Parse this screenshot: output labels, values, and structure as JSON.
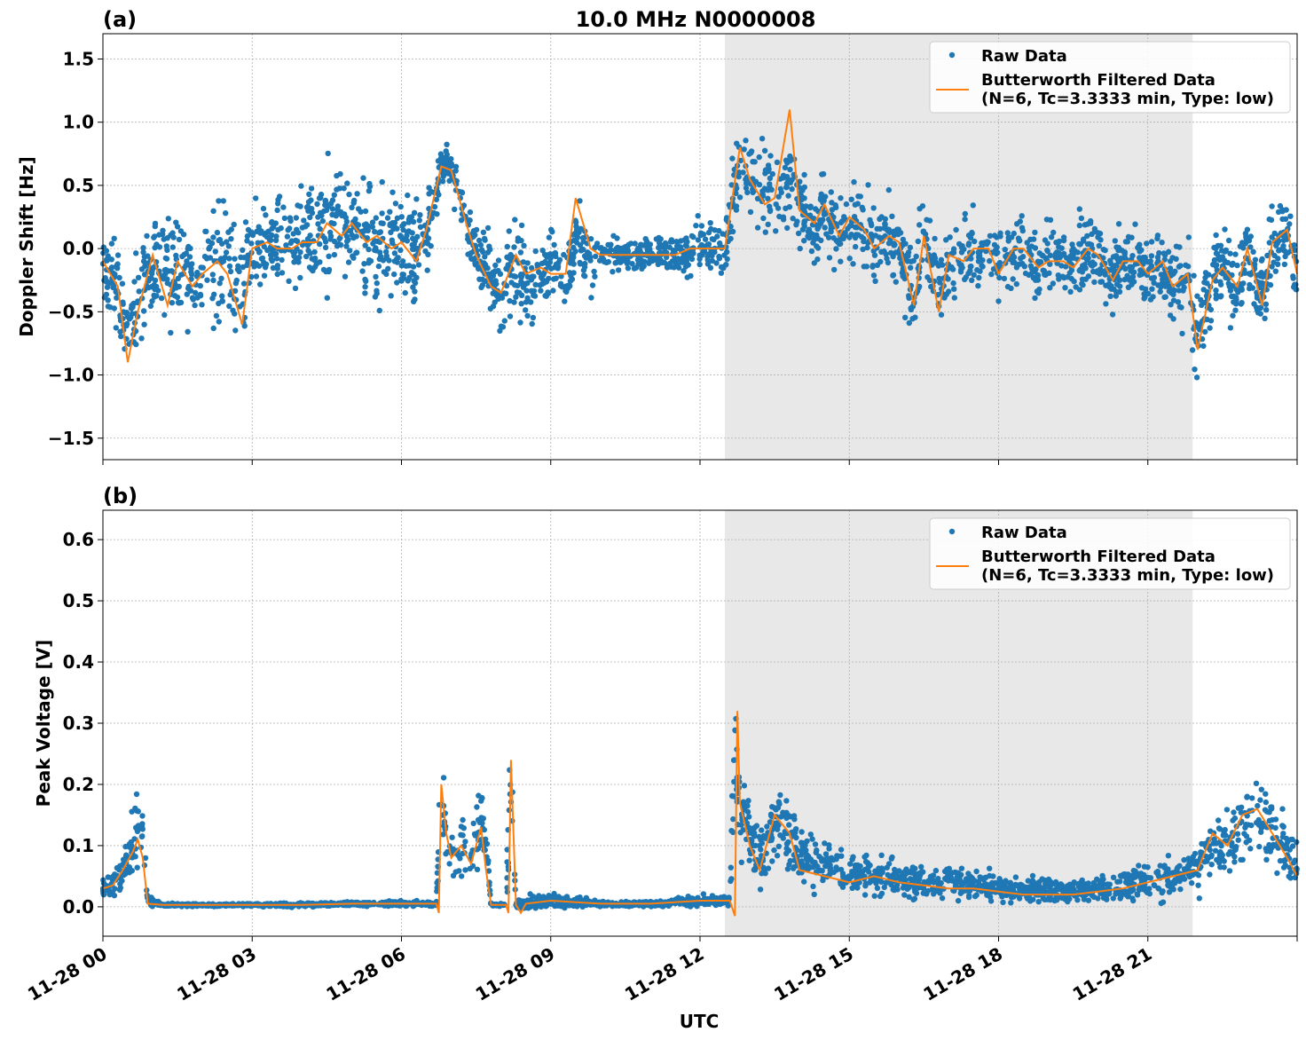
{
  "title": "10.0 MHz N0000008",
  "xlabel": "UTC",
  "x_tick_labels": [
    "11-28 00",
    "11-28 03",
    "11-28 06",
    "11-28 09",
    "11-28 12",
    "11-28 15",
    "11-28 18",
    "11-28 21"
  ],
  "colors": {
    "raw": "#1f77b4",
    "filtered": "#ff7f0e",
    "shade": "#e8e8e8",
    "grid": "#b0b0b0"
  },
  "legend": {
    "raw_label": "Raw Data",
    "filtered_label_line1": "Butterworth Filtered Data",
    "filtered_label_line2": "(N=6, Tc=3.3333 min, Type: low)"
  },
  "chart_data": [
    {
      "type": "scatter",
      "panel_label": "(a)",
      "ylabel": "Doppler Shift [Hz]",
      "xlim_hours": [
        0,
        24
      ],
      "ylim": [
        -1.67,
        1.7
      ],
      "yticks": [
        -1.5,
        -1.0,
        -0.5,
        0.0,
        0.5,
        1.0,
        1.5
      ],
      "ytick_labels": [
        "−1.5",
        "−1.0",
        "−0.5",
        "0.0",
        "0.5",
        "1.0",
        "1.5"
      ],
      "shaded_span_hours": [
        12.5,
        21.9
      ],
      "grid": true,
      "legend_position": "upper right",
      "series": [
        {
          "name": "Raw Data",
          "style": "points",
          "x_hours": [
            0.0,
            0.3,
            0.5,
            0.7,
            1.0,
            1.3,
            1.5,
            1.8,
            2.0,
            2.3,
            2.5,
            2.8,
            3.0,
            3.3,
            3.5,
            3.8,
            4.0,
            4.3,
            4.5,
            4.8,
            5.0,
            5.3,
            5.5,
            5.8,
            6.0,
            6.3,
            6.5,
            6.8,
            7.0,
            7.3,
            7.5,
            7.8,
            8.0,
            8.3,
            8.5,
            8.8,
            9.0,
            9.3,
            9.5,
            9.8,
            10.0,
            10.3,
            10.5,
            10.8,
            11.0,
            11.3,
            11.5,
            11.8,
            12.0,
            12.3,
            12.5,
            12.8,
            13.0,
            13.3,
            13.5,
            13.8,
            14.0,
            14.3,
            14.5,
            14.8,
            15.0,
            15.3,
            15.5,
            15.8,
            16.0,
            16.3,
            16.5,
            16.8,
            17.0,
            17.3,
            17.5,
            17.8,
            18.0,
            18.3,
            18.5,
            18.8,
            19.0,
            19.3,
            19.5,
            19.8,
            20.0,
            20.3,
            20.5,
            20.8,
            21.0,
            21.3,
            21.5,
            21.8,
            22.0,
            22.3,
            22.5,
            22.8,
            23.0,
            23.3,
            23.5,
            23.8,
            24.0
          ],
          "y_center": [
            -0.1,
            -0.3,
            -0.8,
            -0.4,
            -0.1,
            -0.2,
            -0.1,
            -0.3,
            -0.2,
            -0.1,
            -0.1,
            -0.3,
            0.0,
            0.0,
            0.05,
            0.0,
            0.05,
            0.1,
            0.2,
            0.15,
            0.1,
            0.1,
            0.05,
            0.0,
            0.05,
            0.0,
            0.1,
            0.65,
            0.6,
            0.2,
            0.0,
            -0.2,
            -0.35,
            -0.1,
            -0.3,
            -0.2,
            -0.1,
            -0.2,
            0.1,
            -0.1,
            -0.05,
            -0.05,
            -0.05,
            -0.05,
            -0.05,
            -0.05,
            -0.05,
            -0.05,
            0.0,
            0.0,
            0.0,
            0.75,
            0.5,
            0.5,
            0.35,
            0.6,
            0.3,
            0.2,
            0.3,
            0.1,
            0.25,
            0.15,
            0.0,
            0.1,
            0.0,
            -0.4,
            0.1,
            -0.35,
            -0.1,
            -0.1,
            0.0,
            0.0,
            -0.1,
            0.0,
            0.0,
            -0.15,
            -0.05,
            -0.1,
            -0.1,
            0.0,
            -0.05,
            -0.2,
            -0.1,
            -0.1,
            -0.2,
            -0.1,
            -0.3,
            -0.2,
            -0.7,
            -0.2,
            -0.1,
            -0.3,
            0.0,
            -0.4,
            0.0,
            0.1,
            -0.2
          ],
          "y_spread": [
            0.25,
            0.3,
            0.35,
            0.35,
            0.4,
            0.45,
            0.4,
            0.4,
            0.4,
            0.45,
            0.45,
            0.45,
            0.35,
            0.4,
            0.35,
            0.35,
            0.35,
            0.35,
            0.45,
            0.4,
            0.4,
            0.45,
            0.4,
            0.4,
            0.35,
            0.35,
            0.4,
            0.12,
            0.15,
            0.2,
            0.2,
            0.3,
            0.35,
            0.3,
            0.3,
            0.3,
            0.3,
            0.3,
            0.25,
            0.3,
            0.12,
            0.12,
            0.12,
            0.12,
            0.12,
            0.1,
            0.15,
            0.15,
            0.2,
            0.2,
            0.2,
            0.35,
            0.3,
            0.35,
            0.35,
            0.35,
            0.3,
            0.3,
            0.3,
            0.3,
            0.3,
            0.3,
            0.3,
            0.3,
            0.3,
            0.3,
            0.3,
            0.3,
            0.25,
            0.25,
            0.25,
            0.25,
            0.25,
            0.25,
            0.25,
            0.25,
            0.25,
            0.25,
            0.25,
            0.3,
            0.25,
            0.3,
            0.25,
            0.25,
            0.25,
            0.3,
            0.35,
            0.35,
            0.35,
            0.3,
            0.3,
            0.35,
            0.3,
            0.3,
            0.3,
            0.3,
            0.3
          ]
        },
        {
          "name": "Butterworth Filtered Data",
          "style": "line",
          "x_hours": [
            0.0,
            0.3,
            0.5,
            0.7,
            1.0,
            1.3,
            1.5,
            1.8,
            2.0,
            2.3,
            2.5,
            2.8,
            3.0,
            3.3,
            3.5,
            3.8,
            4.0,
            4.3,
            4.5,
            4.8,
            5.0,
            5.3,
            5.5,
            5.8,
            6.0,
            6.3,
            6.5,
            6.8,
            7.0,
            7.3,
            7.5,
            7.8,
            8.0,
            8.3,
            8.5,
            8.8,
            9.0,
            9.3,
            9.5,
            9.8,
            10.0,
            10.3,
            10.5,
            10.8,
            11.0,
            11.3,
            11.5,
            11.8,
            12.0,
            12.3,
            12.5,
            12.8,
            13.0,
            13.3,
            13.5,
            13.8,
            14.0,
            14.3,
            14.5,
            14.8,
            15.0,
            15.3,
            15.5,
            15.8,
            16.0,
            16.3,
            16.5,
            16.8,
            17.0,
            17.3,
            17.5,
            17.8,
            18.0,
            18.3,
            18.5,
            18.8,
            19.0,
            19.3,
            19.5,
            19.8,
            20.0,
            20.3,
            20.5,
            20.8,
            21.0,
            21.3,
            21.5,
            21.8,
            22.0,
            22.3,
            22.5,
            22.8,
            23.0,
            23.3,
            23.5,
            23.8,
            24.0
          ],
          "y": [
            -0.1,
            -0.3,
            -0.9,
            -0.5,
            -0.05,
            -0.45,
            -0.1,
            -0.3,
            -0.2,
            -0.1,
            -0.2,
            -0.6,
            0.0,
            0.05,
            0.0,
            0.0,
            0.05,
            0.05,
            0.2,
            0.1,
            0.2,
            0.05,
            0.1,
            0.0,
            0.05,
            -0.1,
            0.15,
            0.65,
            0.62,
            0.2,
            -0.05,
            -0.3,
            -0.35,
            -0.05,
            -0.2,
            -0.15,
            -0.2,
            -0.2,
            0.4,
            0.0,
            -0.05,
            -0.05,
            -0.05,
            -0.05,
            -0.05,
            -0.05,
            -0.05,
            0.0,
            0.0,
            0.0,
            0.0,
            0.8,
            0.55,
            0.35,
            0.4,
            1.1,
            0.3,
            0.2,
            0.35,
            0.1,
            0.25,
            0.15,
            0.0,
            0.1,
            0.05,
            -0.45,
            0.1,
            -0.5,
            -0.05,
            -0.1,
            0.0,
            0.0,
            -0.2,
            0.0,
            0.0,
            -0.15,
            -0.1,
            -0.1,
            -0.15,
            0.0,
            -0.05,
            -0.25,
            -0.1,
            -0.1,
            -0.2,
            -0.1,
            -0.3,
            -0.2,
            -0.8,
            -0.25,
            -0.15,
            -0.3,
            0.0,
            -0.45,
            0.05,
            0.15,
            -0.2
          ]
        }
      ]
    },
    {
      "type": "scatter",
      "panel_label": "(b)",
      "ylabel": "Peak Voltage [V]",
      "xlim_hours": [
        0,
        24
      ],
      "ylim": [
        -0.048,
        0.648
      ],
      "yticks": [
        0.0,
        0.1,
        0.2,
        0.3,
        0.4,
        0.5,
        0.6
      ],
      "ytick_labels": [
        "0.0",
        "0.1",
        "0.2",
        "0.3",
        "0.4",
        "0.5",
        "0.6"
      ],
      "shaded_span_hours": [
        12.5,
        21.9
      ],
      "grid": true,
      "legend_position": "upper right",
      "series": [
        {
          "name": "Raw Data",
          "style": "points",
          "x_hours": [
            0.0,
            0.2,
            0.4,
            0.6,
            0.7,
            0.8,
            0.9,
            1.2,
            2.0,
            3.0,
            4.0,
            5.0,
            6.0,
            6.7,
            6.8,
            6.9,
            7.0,
            7.2,
            7.4,
            7.6,
            7.7,
            7.8,
            8.1,
            8.2,
            8.3,
            8.4,
            8.5,
            9.0,
            10.0,
            11.0,
            12.0,
            12.6,
            12.7,
            12.8,
            13.0,
            13.2,
            13.5,
            13.8,
            14.0,
            14.5,
            15.0,
            15.5,
            16.0,
            16.5,
            17.0,
            17.5,
            18.0,
            18.5,
            19.0,
            19.5,
            20.0,
            20.5,
            21.0,
            21.5,
            22.0,
            22.3,
            22.6,
            22.9,
            23.2,
            23.5,
            23.8,
            24.0
          ],
          "y_center": [
            0.03,
            0.04,
            0.06,
            0.1,
            0.13,
            0.12,
            0.01,
            0.003,
            0.003,
            0.003,
            0.003,
            0.005,
            0.005,
            0.005,
            0.2,
            0.12,
            0.08,
            0.1,
            0.08,
            0.15,
            0.1,
            0.003,
            0.003,
            0.22,
            0.003,
            0.005,
            0.005,
            0.01,
            0.005,
            0.005,
            0.01,
            0.01,
            0.28,
            0.15,
            0.12,
            0.09,
            0.14,
            0.12,
            0.08,
            0.07,
            0.05,
            0.05,
            0.05,
            0.04,
            0.04,
            0.035,
            0.03,
            0.03,
            0.025,
            0.025,
            0.03,
            0.035,
            0.04,
            0.05,
            0.06,
            0.09,
            0.1,
            0.13,
            0.15,
            0.12,
            0.09,
            0.06
          ],
          "y_spread": [
            0.015,
            0.02,
            0.03,
            0.05,
            0.06,
            0.05,
            0.01,
            0.002,
            0.002,
            0.002,
            0.003,
            0.003,
            0.004,
            0.004,
            0.1,
            0.06,
            0.04,
            0.05,
            0.05,
            0.06,
            0.05,
            0.002,
            0.002,
            0.12,
            0.003,
            0.01,
            0.01,
            0.01,
            0.004,
            0.004,
            0.008,
            0.008,
            0.15,
            0.07,
            0.05,
            0.05,
            0.06,
            0.06,
            0.04,
            0.04,
            0.03,
            0.03,
            0.03,
            0.025,
            0.025,
            0.02,
            0.02,
            0.02,
            0.018,
            0.018,
            0.02,
            0.025,
            0.03,
            0.035,
            0.04,
            0.05,
            0.06,
            0.07,
            0.07,
            0.06,
            0.05,
            0.04
          ]
        },
        {
          "name": "Butterworth Filtered Data",
          "style": "line",
          "x_hours": [
            0.0,
            0.2,
            0.4,
            0.6,
            0.7,
            0.8,
            0.9,
            1.2,
            2.0,
            3.0,
            4.0,
            5.0,
            6.0,
            6.7,
            6.75,
            6.8,
            6.9,
            7.0,
            7.2,
            7.4,
            7.6,
            7.7,
            7.8,
            8.1,
            8.15,
            8.2,
            8.3,
            8.4,
            8.5,
            9.0,
            10.0,
            11.0,
            12.0,
            12.6,
            12.7,
            12.75,
            12.8,
            13.0,
            13.2,
            13.5,
            13.8,
            14.0,
            14.5,
            15.0,
            15.5,
            16.0,
            16.5,
            17.0,
            17.5,
            18.0,
            18.5,
            19.0,
            19.5,
            20.0,
            20.5,
            21.0,
            21.5,
            22.0,
            22.3,
            22.6,
            22.9,
            23.2,
            23.5,
            23.8,
            24.0
          ],
          "y": [
            0.03,
            0.035,
            0.06,
            0.09,
            0.11,
            0.08,
            0.005,
            0.003,
            0.003,
            0.003,
            0.003,
            0.005,
            0.005,
            0.005,
            -0.01,
            0.2,
            0.12,
            0.08,
            0.1,
            0.07,
            0.13,
            0.06,
            0.003,
            0.003,
            -0.01,
            0.24,
            0.003,
            -0.01,
            0.005,
            0.01,
            0.005,
            0.005,
            0.01,
            0.01,
            -0.015,
            0.32,
            0.17,
            0.1,
            0.06,
            0.15,
            0.12,
            0.06,
            0.05,
            0.04,
            0.05,
            0.04,
            0.035,
            0.03,
            0.03,
            0.025,
            0.02,
            0.02,
            0.02,
            0.025,
            0.03,
            0.04,
            0.05,
            0.06,
            0.12,
            0.1,
            0.15,
            0.16,
            0.12,
            0.08,
            0.05
          ]
        }
      ]
    }
  ]
}
